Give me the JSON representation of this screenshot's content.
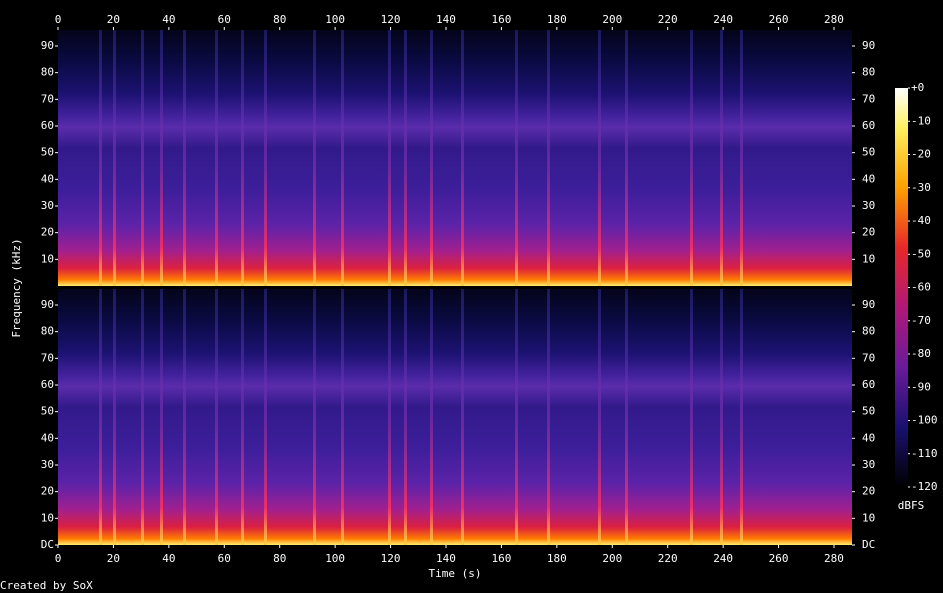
{
  "chart_data": {
    "type": "spectrogram",
    "xlabel": "Time (s)",
    "ylabel": "Frequency (kHz)",
    "footer": "Created by SoX",
    "xlim": [
      0,
      286.5
    ],
    "xticks": [
      0,
      20,
      40,
      60,
      80,
      100,
      120,
      140,
      160,
      180,
      200,
      220,
      240,
      260,
      280
    ],
    "panels": [
      {
        "ylim": [
          0,
          96
        ],
        "yticks": [
          10,
          20,
          30,
          40,
          50,
          60,
          70,
          80,
          90
        ]
      },
      {
        "ylim": [
          0,
          96
        ],
        "yticks": [
          {
            "value": 0,
            "label": "DC"
          },
          10,
          20,
          30,
          40,
          50,
          60,
          70,
          80,
          90
        ]
      }
    ],
    "colorbar": {
      "label": "dBFS",
      "zlim": [
        -120,
        0
      ],
      "ticks": [
        {
          "value": 0,
          "label": "+0"
        },
        -10,
        -20,
        -30,
        -40,
        -50,
        -60,
        -70,
        -80,
        -90,
        -100,
        -110,
        -120
      ]
    }
  }
}
